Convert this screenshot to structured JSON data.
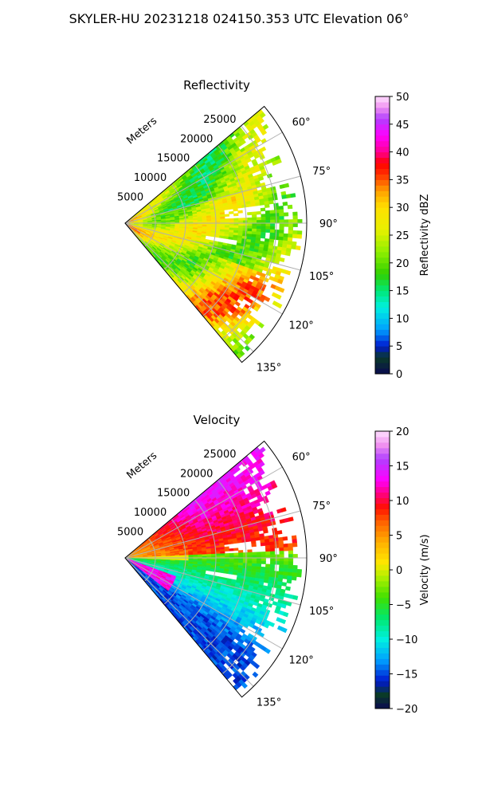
{
  "figure": {
    "title": "SKYLER-HU  20231218  024150.353 UTC Elevation 06°"
  },
  "chart_data": [
    {
      "type": "heatmap",
      "subtype": "polar-sector",
      "title": "Reflectivity",
      "radial_label": "Meters",
      "radial_ticks": [
        5000,
        10000,
        15000,
        20000,
        25000
      ],
      "range_max_m": 30000,
      "azimuth_range_deg": [
        50,
        140
      ],
      "azimuth_ticks": [
        "60°",
        "75°",
        "90°",
        "105°",
        "120°",
        "135°"
      ],
      "azimuth_tick_values": [
        60,
        75,
        90,
        105,
        120,
        135
      ],
      "grid": true,
      "colorbar": {
        "label": "Reflectivity dBZ",
        "min": 0,
        "max": 50,
        "ticks": [
          "0",
          "5",
          "10",
          "15",
          "20",
          "25",
          "30",
          "35",
          "40",
          "45",
          "50"
        ],
        "tick_values": [
          0,
          5,
          10,
          15,
          20,
          25,
          30,
          35,
          40,
          45,
          50
        ],
        "color_stops": [
          [
            0,
            "#0a0a50"
          ],
          [
            3,
            "#0a3a28"
          ],
          [
            5,
            "#0018d0"
          ],
          [
            8,
            "#00a0ff"
          ],
          [
            12,
            "#00f0e0"
          ],
          [
            15,
            "#00e878"
          ],
          [
            18,
            "#30d000"
          ],
          [
            22,
            "#90f000"
          ],
          [
            26,
            "#e8f000"
          ],
          [
            30,
            "#ffe000"
          ],
          [
            33,
            "#ffa000"
          ],
          [
            36,
            "#ff3000"
          ],
          [
            38,
            "#ff0000"
          ],
          [
            40,
            "#ff0090"
          ],
          [
            43,
            "#ff00ff"
          ],
          [
            46,
            "#b040ff"
          ],
          [
            48,
            "#f090f0"
          ],
          [
            50,
            "#ffe0ff"
          ]
        ]
      }
    },
    {
      "type": "heatmap",
      "subtype": "polar-sector",
      "title": "Velocity",
      "radial_label": "Meters",
      "radial_ticks": [
        5000,
        10000,
        15000,
        20000,
        25000
      ],
      "range_max_m": 30000,
      "azimuth_range_deg": [
        50,
        140
      ],
      "azimuth_ticks": [
        "60°",
        "75°",
        "90°",
        "105°",
        "120°",
        "135°"
      ],
      "azimuth_tick_values": [
        60,
        75,
        90,
        105,
        120,
        135
      ],
      "grid": true,
      "colorbar": {
        "label": "Velocity (m/s)",
        "min": -20,
        "max": 20,
        "ticks": [
          "−20",
          "−15",
          "−10",
          "−5",
          "0",
          "5",
          "10",
          "15",
          "20"
        ],
        "tick_values": [
          -20,
          -15,
          -10,
          -5,
          0,
          5,
          10,
          15,
          20
        ],
        "color_stops": [
          [
            -20,
            "#0a0a50"
          ],
          [
            -18,
            "#0a3a28"
          ],
          [
            -16,
            "#0018d0"
          ],
          [
            -13,
            "#00a0ff"
          ],
          [
            -10,
            "#00f0e0"
          ],
          [
            -7,
            "#00e870"
          ],
          [
            -4,
            "#40e000"
          ],
          [
            -1,
            "#b0f000"
          ],
          [
            1,
            "#ffe800"
          ],
          [
            4,
            "#ffb000"
          ],
          [
            7,
            "#ff6000"
          ],
          [
            9,
            "#ff1000"
          ],
          [
            11,
            "#ff0080"
          ],
          [
            13,
            "#ff00ff"
          ],
          [
            16,
            "#b040ff"
          ],
          [
            18,
            "#f090f0"
          ],
          [
            20,
            "#ffe0ff"
          ]
        ]
      }
    }
  ]
}
